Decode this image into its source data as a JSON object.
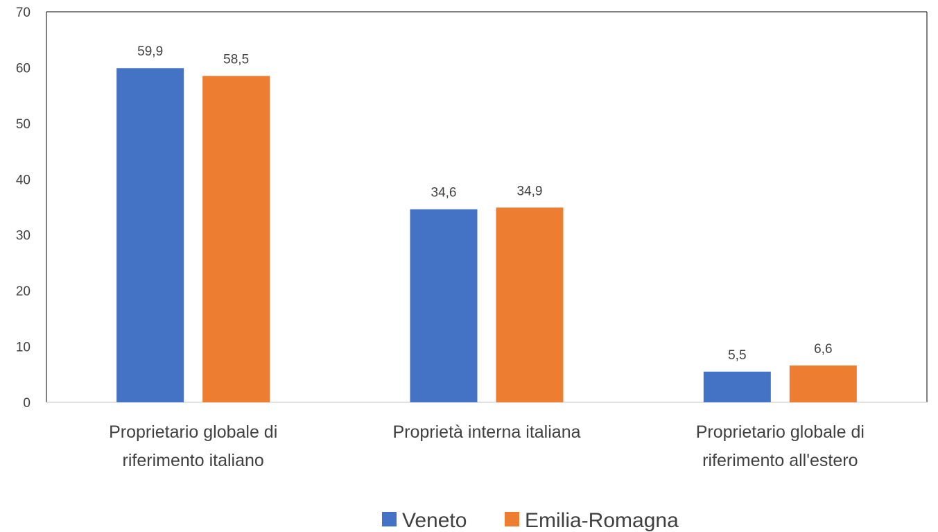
{
  "chart_data": {
    "type": "bar",
    "categories": [
      [
        "Proprietario globale di",
        "riferimento italiano"
      ],
      [
        "Proprietà interna italiana"
      ],
      [
        "Proprietario globale di",
        "riferimento all'estero"
      ]
    ],
    "series": [
      {
        "name": "Veneto",
        "color": "#4472C4",
        "values": [
          59.9,
          34.6,
          5.5
        ],
        "labels": [
          "59,9",
          "34,6",
          "5,5"
        ]
      },
      {
        "name": "Emilia-Romagna",
        "color": "#ED7D31",
        "values": [
          58.5,
          34.9,
          6.6
        ],
        "labels": [
          "58,5",
          "34,9",
          "6,6"
        ]
      }
    ],
    "yticks": [
      0,
      10,
      20,
      30,
      40,
      50,
      60,
      70
    ],
    "ylim": [
      0,
      70
    ],
    "legend_position": "bottom",
    "grid": false
  }
}
